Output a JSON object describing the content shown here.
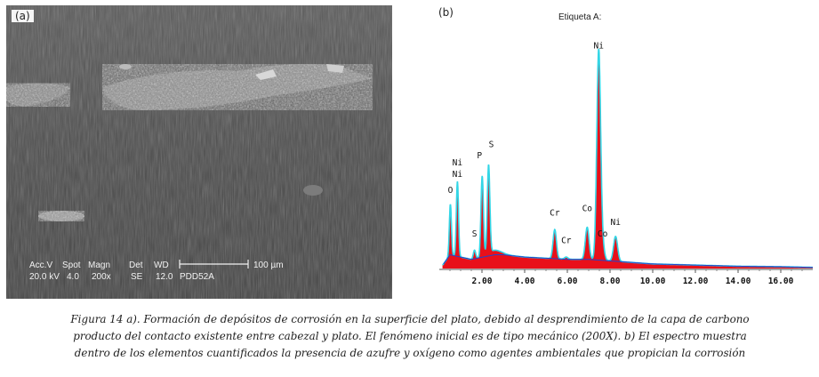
{
  "panel_a": {
    "label": "(a)",
    "overlay": {
      "row1": [
        "Acc.V",
        "Spot",
        "Magn",
        "Det",
        "WD"
      ],
      "row2": [
        "20.0 kV",
        "4.0",
        "200x",
        "SE",
        "12.0",
        "PDD52A"
      ],
      "scale_bar_text": "100 µm"
    }
  },
  "panel_b": {
    "label": "(b)",
    "title": "Etiqueta A:",
    "chart_data": {
      "type": "area",
      "xlim": [
        0,
        17.5
      ],
      "x_ticks": [
        "2.00",
        "4.00",
        "6.00",
        "8.00",
        "10.00",
        "12.00",
        "14.00",
        "16.00"
      ],
      "x_tick_values": [
        2,
        4,
        6,
        8,
        10,
        12,
        14,
        16
      ],
      "ylim": [
        0,
        100
      ],
      "peaks": [
        {
          "label": "O",
          "x": 0.52,
          "y": 28,
          "label_y": 33
        },
        {
          "label": "Ni",
          "x": 0.85,
          "y": 38,
          "label_y": 45
        },
        {
          "label": "Ni",
          "x": 0.85,
          "y": 38,
          "label_y": 40
        },
        {
          "label": "S",
          "x": 1.65,
          "y": 8,
          "label_y": 14
        },
        {
          "label": "P",
          "x": 2.01,
          "y": 40,
          "label_y": 48
        },
        {
          "label": "S",
          "x": 2.31,
          "y": 44,
          "label_y": 53
        },
        {
          "label": "Cr",
          "x": 5.41,
          "y": 17,
          "label_y": 23
        },
        {
          "label": "Cr",
          "x": 5.95,
          "y": 5,
          "label_y": 11
        },
        {
          "label": "Co",
          "x": 6.93,
          "y": 18,
          "label_y": 25
        },
        {
          "label": "Ni",
          "x": 7.47,
          "y": 95,
          "label_y": 96
        },
        {
          "label": "Co",
          "x": 7.65,
          "y": 9,
          "label_y": 14
        },
        {
          "label": "Ni",
          "x": 8.26,
          "y": 14,
          "label_y": 19
        }
      ],
      "background": [
        [
          0.2,
          2
        ],
        [
          0.5,
          6
        ],
        [
          1.0,
          5
        ],
        [
          1.5,
          4
        ],
        [
          2.6,
          6
        ],
        [
          3.0,
          6
        ],
        [
          4.0,
          5
        ],
        [
          5.0,
          4.5
        ],
        [
          6.0,
          4
        ],
        [
          7.0,
          4
        ],
        [
          8.5,
          3
        ],
        [
          10.0,
          2
        ],
        [
          12.0,
          1.5
        ],
        [
          14.0,
          1
        ],
        [
          16.0,
          0.8
        ],
        [
          17.5,
          0.5
        ]
      ],
      "colors": {
        "fill": "#e8101a",
        "outline": "#33d6e6",
        "baseline": "#2244cc"
      }
    }
  },
  "caption": {
    "lines": [
      "Figura 14 a). Formación de depósitos de corrosión en la superficie del plato, debido al desprendimiento de la capa de carbono",
      "producto del contacto existente entre cabezal y plato. El fenómeno inicial es de tipo mecánico (200X). b) El espectro muestra",
      "dentro de los elementos cuantificados la presencia de azufre y oxígeno como agentes ambientales que propician la corrosión"
    ]
  }
}
